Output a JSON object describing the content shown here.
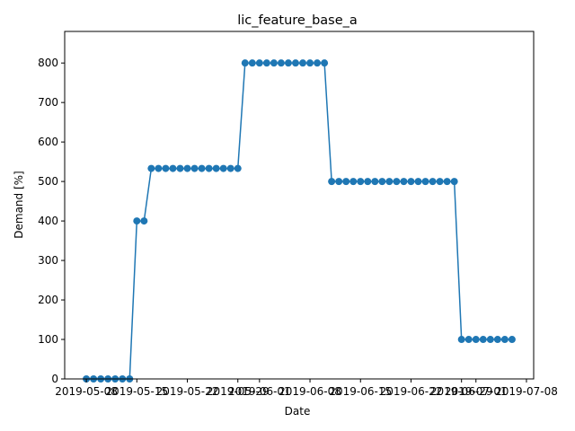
{
  "chart_data": {
    "type": "line",
    "title": "lic_feature_base_a",
    "xlabel": "Date",
    "ylabel": "Demand [%]",
    "ylim": [
      0,
      880
    ],
    "xlim": [
      "2019-05-05",
      "2019-07-09"
    ],
    "yticks": [
      0,
      100,
      200,
      300,
      400,
      500,
      600,
      700,
      800
    ],
    "xticks": [
      "2019-05-08",
      "2019-05-15",
      "2019-05-22",
      "2019-05-29",
      "2019-06-01",
      "2019-06-08",
      "2019-06-15",
      "2019-06-22",
      "2019-06-29",
      "2019-07-01",
      "2019-07-08"
    ],
    "grid": false,
    "marker": "circle",
    "color": "#1f77b4",
    "series": [
      {
        "x": [
          "2019-05-08",
          "2019-05-09",
          "2019-05-10",
          "2019-05-11",
          "2019-05-12",
          "2019-05-13",
          "2019-05-14",
          "2019-05-15",
          "2019-05-16",
          "2019-05-17",
          "2019-05-18",
          "2019-05-19",
          "2019-05-20",
          "2019-05-21",
          "2019-05-22",
          "2019-05-23",
          "2019-05-24",
          "2019-05-25",
          "2019-05-26",
          "2019-05-27",
          "2019-05-28",
          "2019-05-29",
          "2019-05-30",
          "2019-05-31",
          "2019-06-01",
          "2019-06-02",
          "2019-06-03",
          "2019-06-04",
          "2019-06-05",
          "2019-06-06",
          "2019-06-07",
          "2019-06-08",
          "2019-06-09",
          "2019-06-10",
          "2019-06-11",
          "2019-06-12",
          "2019-06-13",
          "2019-06-14",
          "2019-06-15",
          "2019-06-16",
          "2019-06-17",
          "2019-06-18",
          "2019-06-19",
          "2019-06-20",
          "2019-06-21",
          "2019-06-22",
          "2019-06-23",
          "2019-06-24",
          "2019-06-25",
          "2019-06-26",
          "2019-06-27",
          "2019-06-28",
          "2019-06-29",
          "2019-06-30",
          "2019-07-01",
          "2019-07-02",
          "2019-07-03",
          "2019-07-04",
          "2019-07-05",
          "2019-07-06"
        ],
        "values": [
          0,
          0,
          0,
          0,
          0,
          0,
          0,
          400,
          400,
          533,
          533,
          533,
          533,
          533,
          533,
          533,
          533,
          533,
          533,
          533,
          533,
          533,
          800,
          800,
          800,
          800,
          800,
          800,
          800,
          800,
          800,
          800,
          800,
          800,
          500,
          500,
          500,
          500,
          500,
          500,
          500,
          500,
          500,
          500,
          500,
          500,
          500,
          500,
          500,
          500,
          500,
          500,
          100,
          100,
          100,
          100,
          100,
          100,
          100,
          100
        ]
      }
    ]
  }
}
